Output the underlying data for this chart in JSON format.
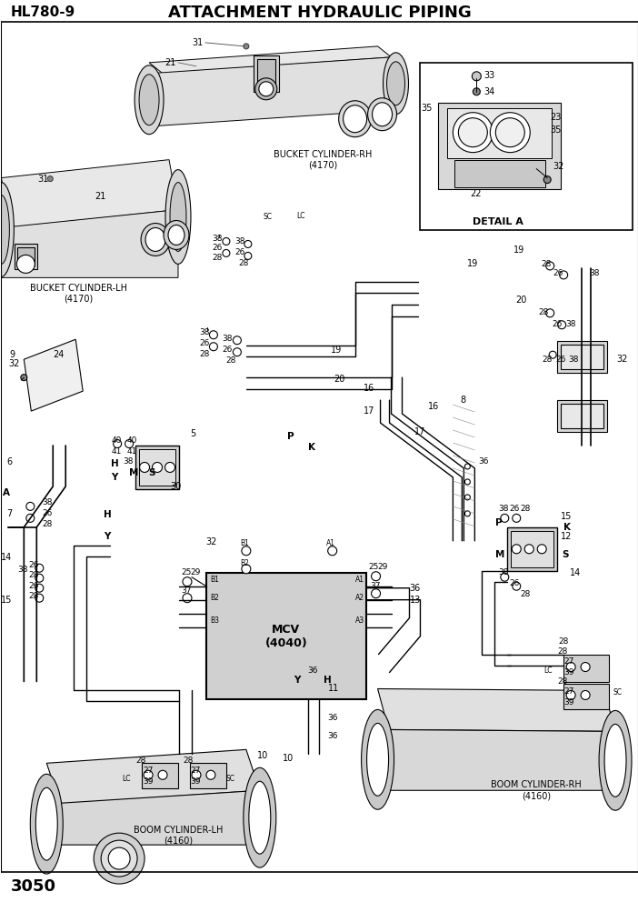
{
  "title": "ATTACHMENT HYDRAULIC PIPING",
  "model": "HL780-9",
  "page": "3050",
  "bg": "#ffffff",
  "lc": "#000000",
  "gc": "#888888",
  "figsize": [
    7.02,
    9.92
  ],
  "dpi": 100,
  "labels": {
    "bkrh": "BUCKET CYLINDER-RH\n(4170)",
    "bklh": "BUCKET CYLINDER-LH\n(4170)",
    "bmlh": "BOOM CYLINDER-LH\n(4160)",
    "bmrh": "BOOM CYLINDER-RH\n(4160)",
    "mcv": "MCV\n(4040)",
    "detail_a": "DETAIL A"
  }
}
